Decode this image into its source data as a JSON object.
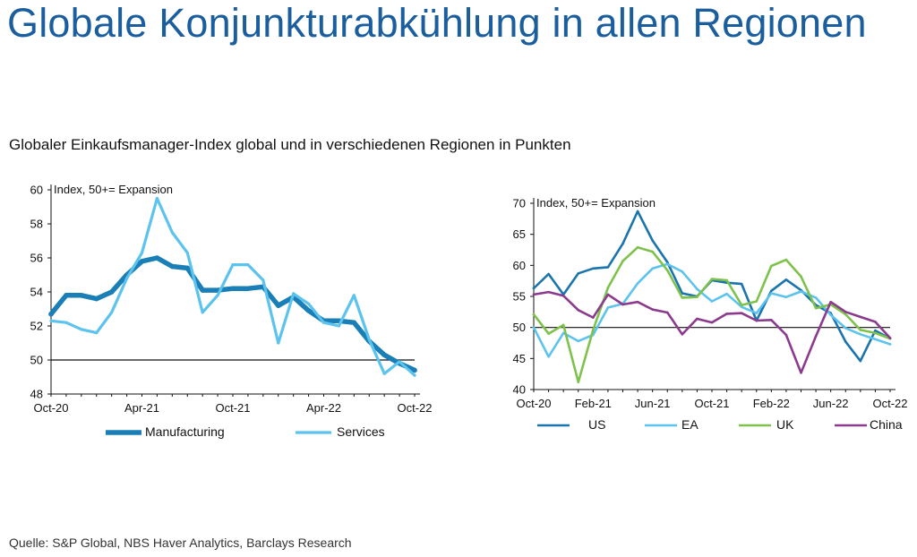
{
  "title": "Globale Konjunkturabkühlung in allen Regionen",
  "subtitle": "Globaler Einkaufsmanager-Index global und in verschiedenen Regionen in Punkten",
  "source": "Quelle: S&P Global, NBS Haver Analytics, Barclays Research",
  "colors": {
    "us": "#1a74ad",
    "ea": "#5cc3ee",
    "uk": "#7ec24c",
    "china": "#8b3a8e",
    "manufacturing": "#1a7fb6",
    "services": "#5cc3ee",
    "reference": "#111111"
  },
  "chart_data": [
    {
      "type": "line",
      "annotation": "Index, 50+= Expansion",
      "x": [
        "Oct-20",
        "Nov-20",
        "Dec-20",
        "Jan-21",
        "Feb-21",
        "Mar-21",
        "Apr-21",
        "May-21",
        "Jun-21",
        "Jul-21",
        "Aug-21",
        "Sep-21",
        "Oct-21",
        "Nov-21",
        "Dec-21",
        "Jan-22",
        "Feb-22",
        "Mar-22",
        "Apr-22",
        "May-22",
        "Jun-22",
        "Jul-22",
        "Aug-22",
        "Sep-22",
        "Oct-22"
      ],
      "x_tick_labels": [
        "Oct-20",
        "Apr-21",
        "Oct-21",
        "Apr-22",
        "Oct-22"
      ],
      "ylim": [
        48,
        60
      ],
      "y_ticks": [
        48,
        50,
        52,
        54,
        56,
        58,
        60
      ],
      "reference_line": 50,
      "series": [
        {
          "name": "Manufacturing",
          "color_key": "manufacturing",
          "values": [
            52.7,
            53.8,
            53.8,
            53.6,
            54.0,
            55.0,
            55.8,
            56.0,
            55.5,
            55.4,
            54.1,
            54.1,
            54.2,
            54.2,
            54.3,
            53.2,
            53.7,
            52.9,
            52.3,
            52.3,
            52.2,
            51.1,
            50.3,
            49.8,
            49.4
          ]
        },
        {
          "name": "Services",
          "color_key": "services",
          "values": [
            52.3,
            52.2,
            51.8,
            51.6,
            52.8,
            54.8,
            56.3,
            59.5,
            57.5,
            56.3,
            52.8,
            53.8,
            55.6,
            55.6,
            54.7,
            51.0,
            53.9,
            53.3,
            52.2,
            52.0,
            53.8,
            51.2,
            49.2,
            49.9,
            49.1
          ]
        }
      ],
      "legend": "bottom"
    },
    {
      "type": "line",
      "annotation": "Index, 50+= Expansion",
      "x": [
        "Oct-20",
        "Nov-20",
        "Dec-20",
        "Jan-21",
        "Feb-21",
        "Mar-21",
        "Apr-21",
        "May-21",
        "Jun-21",
        "Jul-21",
        "Aug-21",
        "Sep-21",
        "Oct-21",
        "Nov-21",
        "Dec-21",
        "Jan-22",
        "Feb-22",
        "Mar-22",
        "Apr-22",
        "May-22",
        "Jun-22",
        "Jul-22",
        "Aug-22",
        "Sep-22",
        "Oct-22"
      ],
      "x_tick_labels": [
        "Oct-20",
        "Feb-21",
        "Jun-21",
        "Oct-21",
        "Feb-22",
        "Jun-22",
        "Oct-22"
      ],
      "ylim": [
        40,
        70
      ],
      "y_ticks": [
        40,
        45,
        50,
        55,
        60,
        65,
        70
      ],
      "reference_line": 50,
      "series": [
        {
          "name": "US",
          "color_key": "us",
          "values": [
            56.3,
            58.6,
            55.3,
            58.7,
            59.5,
            59.7,
            63.5,
            68.7,
            64.0,
            60.5,
            55.5,
            55.0,
            57.6,
            57.2,
            57.0,
            51.1,
            55.9,
            57.7,
            56.0,
            53.6,
            52.3,
            47.7,
            44.6,
            49.5,
            48.2
          ]
        },
        {
          "name": "EA",
          "color_key": "ea",
          "values": [
            50.0,
            45.3,
            49.1,
            47.8,
            48.8,
            53.2,
            53.8,
            57.1,
            59.5,
            60.2,
            59.0,
            56.2,
            54.2,
            55.4,
            53.3,
            52.3,
            55.5,
            54.9,
            55.8,
            54.8,
            52.0,
            49.9,
            48.9,
            48.1,
            47.3
          ]
        },
        {
          "name": "UK",
          "color_key": "uk",
          "values": [
            52.1,
            49.0,
            50.4,
            41.2,
            49.6,
            56.4,
            60.7,
            62.9,
            62.2,
            59.2,
            54.8,
            54.9,
            57.8,
            57.6,
            53.6,
            54.2,
            59.9,
            60.9,
            58.2,
            53.1,
            53.7,
            52.1,
            49.6,
            49.1,
            48.2
          ]
        },
        {
          "name": "China",
          "color_key": "china",
          "values": [
            55.3,
            55.7,
            55.1,
            52.8,
            51.6,
            55.3,
            53.7,
            54.1,
            52.9,
            52.4,
            48.9,
            51.4,
            50.8,
            52.2,
            52.3,
            51.1,
            51.2,
            48.8,
            42.7,
            48.6,
            54.1,
            52.5,
            51.7,
            50.9,
            48.3
          ]
        }
      ],
      "legend": "bottom"
    }
  ]
}
